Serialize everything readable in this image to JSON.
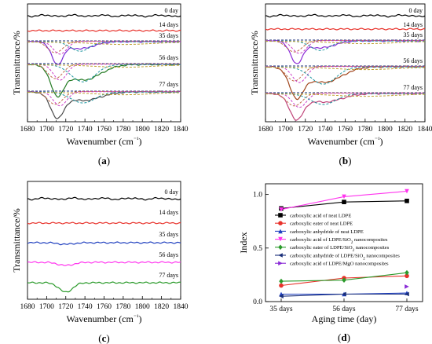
{
  "chart_data": [
    {
      "type": "line",
      "panel_label": "(a)",
      "xlabel": "Wavenumber (cm⁻¹)",
      "ylabel": "Transmittance/%",
      "xlim": [
        1680,
        1840
      ],
      "x_ticks": [
        "1680",
        "1700",
        "1720",
        "1740",
        "1760",
        "1780",
        "1800",
        "1820",
        "1840"
      ],
      "grid": false,
      "series_labels": [
        "0 day",
        "14 days",
        "35 days",
        "56 days",
        "77 days"
      ],
      "series_colors": [
        "#000000",
        "#e8322b",
        "#7b2bd6",
        "#227a22",
        "#4a4a4a"
      ],
      "fits_shown_on": [
        "35 days",
        "56 days",
        "77 days"
      ],
      "fit_colors": [
        "#1a2f7a",
        "#c06a4a",
        "#cc3ec8",
        "#1e96a0",
        "#bfa030"
      ]
    },
    {
      "type": "line",
      "panel_label": "(b)",
      "xlabel": "Wavenumber (cm⁻¹)",
      "ylabel": "Transmittance/%",
      "xlim": [
        1680,
        1840
      ],
      "x_ticks": [
        "1680",
        "1700",
        "1720",
        "1740",
        "1760",
        "1780",
        "1800",
        "1820",
        "1840"
      ],
      "grid": false,
      "series_labels": [
        "0 day",
        "14 days",
        "35 days",
        "56 days",
        "77 days"
      ],
      "series_colors": [
        "#000000",
        "#e8322b",
        "#8a2bd6",
        "#a0441a",
        "#c0457a"
      ],
      "fits_shown_on": [
        "35 days",
        "56 days",
        "77 days"
      ],
      "fit_colors": [
        "#1a2f7a",
        "#c06a4a",
        "#cc3ec8",
        "#1e96a0",
        "#bfa030"
      ]
    },
    {
      "type": "line",
      "panel_label": "(c)",
      "xlabel": "Wavenumber (cm⁻¹)",
      "ylabel": "Transmittance/%",
      "xlim": [
        1680,
        1840
      ],
      "x_ticks": [
        "1680",
        "1700",
        "1720",
        "1740",
        "1760",
        "1780",
        "1800",
        "1820",
        "1840"
      ],
      "grid": false,
      "series_labels": [
        "0 day",
        "14 days",
        "35 days",
        "56 days",
        "77 days"
      ],
      "series_colors": [
        "#000000",
        "#e8322b",
        "#1f3fbf",
        "#ff33ee",
        "#2a9a2a"
      ]
    },
    {
      "type": "line",
      "panel_label": "(d)",
      "xlabel": "Aging time (day)",
      "ylabel": "Index",
      "categories": [
        "35 days",
        "56 days",
        "77 days"
      ],
      "ylim": [
        0,
        1.1
      ],
      "y_ticks": [
        "0.0",
        "0.5",
        "1.0"
      ],
      "legend_position": "right-middle",
      "grid": false,
      "series": [
        {
          "name": "carboxylic acid of neat LDPE",
          "color": "#000000",
          "marker": "square",
          "values": [
            0.87,
            0.93,
            0.94
          ]
        },
        {
          "name": "carboxylic eater of neat LDPE",
          "color": "#e8322b",
          "marker": "circle",
          "values": [
            0.15,
            0.22,
            0.24
          ]
        },
        {
          "name": "carboxylic anhydride of neat LDPE",
          "color": "#1f3fbf",
          "marker": "triangle-up",
          "values": [
            0.07,
            0.07,
            0.08
          ]
        },
        {
          "name": "carboxylic acid of LDPE/SiO2 nanocomposites",
          "color": "#ff33ee",
          "marker": "triangle-down",
          "values": [
            0.86,
            0.98,
            1.03
          ]
        },
        {
          "name": "carboxylic eater of LDPE/SiO2 nanocomposites",
          "color": "#2a9a2a",
          "marker": "diamond",
          "values": [
            0.19,
            0.2,
            0.27
          ]
        },
        {
          "name": "carboxylic anhydride of LDPE/SiO2 nanocomposites",
          "color": "#1a2f7a",
          "marker": "triangle-left",
          "values": [
            0.05,
            0.07,
            0.07
          ]
        },
        {
          "name": "carboxylic acid of LDPE/MgO nanocomposites",
          "color": "#8a2bd6",
          "marker": "triangle-right",
          "values": [
            null,
            null,
            0.14
          ]
        }
      ]
    }
  ]
}
